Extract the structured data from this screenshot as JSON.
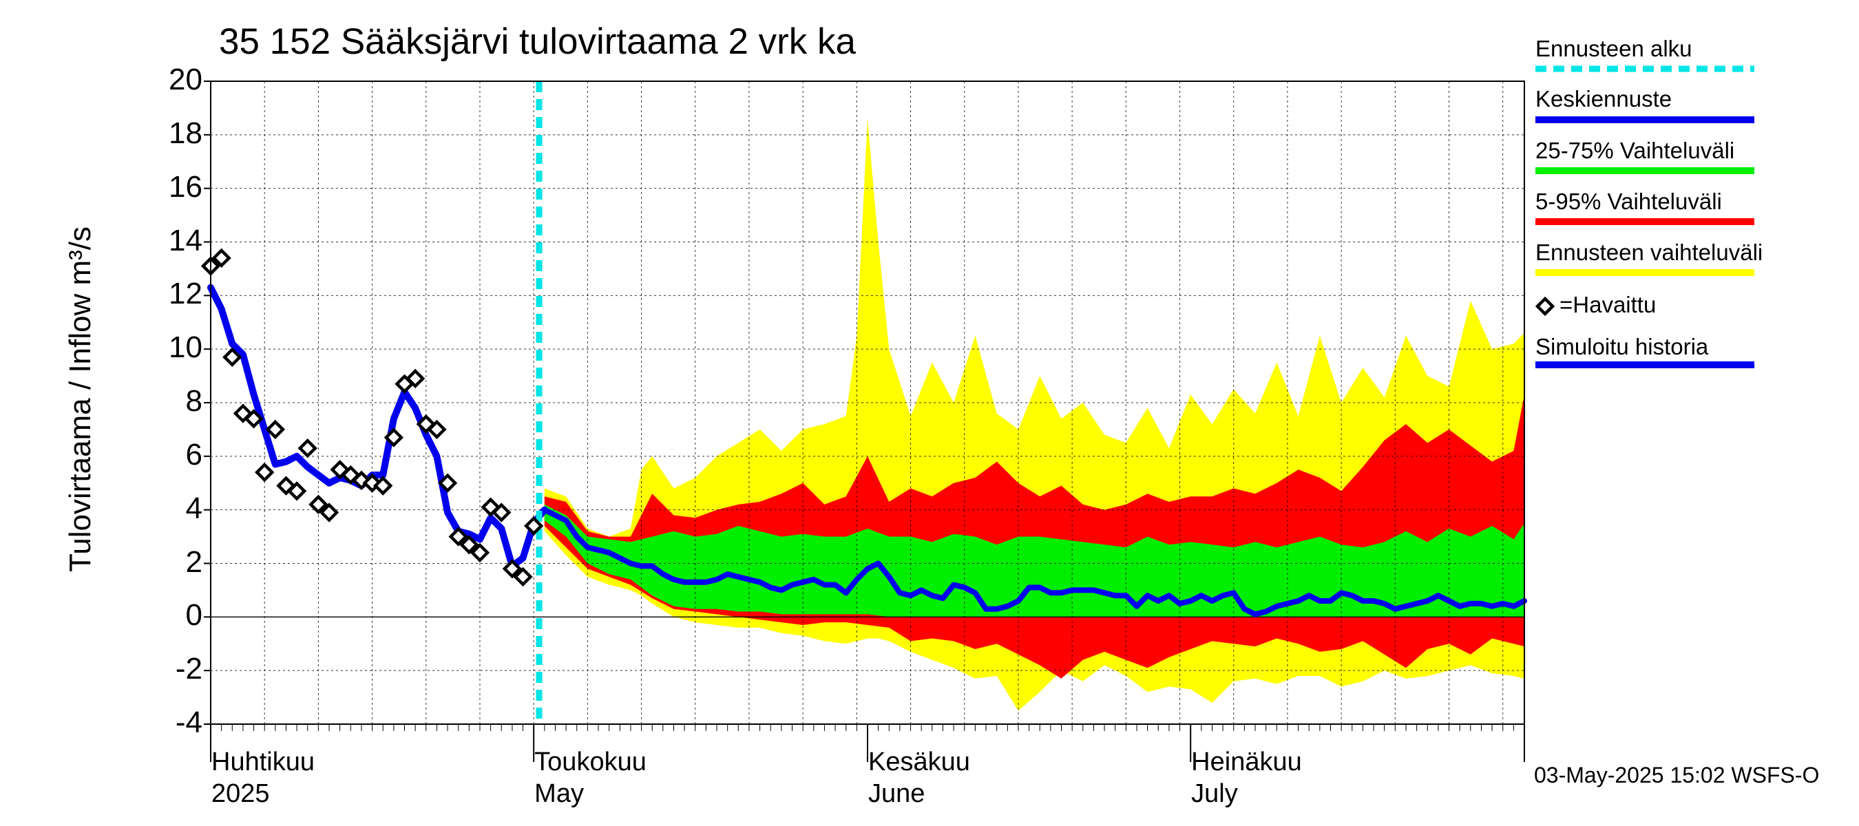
{
  "title": "35 152 Sääksjärvi tulovirtaama 2 vrk ka",
  "footer": "03-May-2025 15:02 WSFS-O",
  "colors": {
    "observed": "#000000",
    "forecast_start": "#00e5e5",
    "mean": "#0000ee",
    "band_25_75": "#00ee00",
    "band_5_95": "#ff0000",
    "band_full": "#ffff00",
    "grid": "#000000"
  },
  "legend": {
    "forecast_start": "Ennusteen alku",
    "mean": "Keskiennuste",
    "band_25_75": "25-75% Vaihteluväli",
    "band_5_95": "5-95% Vaihteluväli",
    "band_full": "Ennusteen vaihteluväli",
    "observed": "=Havaittu",
    "simulated": "Simuloitu historia"
  },
  "chart_data": {
    "type": "line",
    "title": "35 152 Sääksjärvi tulovirtaama 2 vrk ka",
    "ylabel": "Tulovirtaama / Inflow   m³/s",
    "ylim": [
      -4,
      20
    ],
    "yticks": [
      "-4",
      "-2",
      "0",
      "2",
      "4",
      "6",
      "8",
      "10",
      "12",
      "14",
      "16",
      "18",
      "20"
    ],
    "x_unit": "day index from 2025-04-01",
    "xlim": [
      0,
      122
    ],
    "month_labels": [
      {
        "line1": "Huhtikuu",
        "line2": "2025",
        "day": 0
      },
      {
        "line1": "Toukokuu",
        "line2": "May",
        "day": 30
      },
      {
        "line1": "Kesäkuu",
        "line2": "June",
        "day": 61
      },
      {
        "line1": "Heinäkuu",
        "line2": "July",
        "day": 91
      }
    ],
    "forecast_start_day": 30.5,
    "observed": [
      [
        0,
        13.1
      ],
      [
        1,
        13.4
      ],
      [
        2,
        9.7
      ],
      [
        3,
        7.6
      ],
      [
        4,
        7.4
      ],
      [
        5,
        5.4
      ],
      [
        6,
        7.0
      ],
      [
        7,
        4.9
      ],
      [
        8,
        4.7
      ],
      [
        9,
        6.3
      ],
      [
        10,
        4.2
      ],
      [
        11,
        3.9
      ],
      [
        12,
        5.5
      ],
      [
        13,
        5.3
      ],
      [
        14,
        5.1
      ],
      [
        15,
        5.0
      ],
      [
        16,
        4.9
      ],
      [
        17,
        6.7
      ],
      [
        18,
        8.7
      ],
      [
        19,
        8.9
      ],
      [
        20,
        7.2
      ],
      [
        21,
        7.0
      ],
      [
        22,
        5.0
      ],
      [
        23,
        3.0
      ],
      [
        24,
        2.7
      ],
      [
        25,
        2.4
      ],
      [
        26,
        4.1
      ],
      [
        27,
        3.9
      ],
      [
        28,
        1.8
      ],
      [
        29,
        1.5
      ],
      [
        30,
        3.4
      ]
    ],
    "simulated": [
      [
        0,
        12.3
      ],
      [
        1,
        11.5
      ],
      [
        2,
        10.2
      ],
      [
        3,
        9.8
      ],
      [
        4,
        8.3
      ],
      [
        5,
        7.0
      ],
      [
        6,
        5.7
      ],
      [
        7,
        5.8
      ],
      [
        8,
        6.0
      ],
      [
        9,
        5.6
      ],
      [
        10,
        5.3
      ],
      [
        11,
        5.0
      ],
      [
        12,
        5.2
      ],
      [
        13,
        5.1
      ],
      [
        14,
        4.9
      ],
      [
        15,
        5.3
      ],
      [
        16,
        5.3
      ],
      [
        17,
        7.4
      ],
      [
        18,
        8.4
      ],
      [
        19,
        7.8
      ],
      [
        20,
        6.8
      ],
      [
        21,
        6.0
      ],
      [
        22,
        3.9
      ],
      [
        23,
        3.2
      ],
      [
        24,
        3.1
      ],
      [
        25,
        2.9
      ],
      [
        26,
        3.7
      ],
      [
        27,
        3.3
      ],
      [
        28,
        1.9
      ],
      [
        29,
        2.2
      ],
      [
        30,
        3.5
      ],
      [
        31,
        4.0
      ]
    ],
    "series": [
      {
        "name": "Keskiennuste",
        "values": [
          [
            31,
            4.0
          ],
          [
            32,
            3.8
          ],
          [
            33,
            3.6
          ],
          [
            34,
            3.0
          ],
          [
            35,
            2.6
          ],
          [
            36,
            2.5
          ],
          [
            37,
            2.4
          ],
          [
            38,
            2.2
          ],
          [
            39,
            2.0
          ],
          [
            40,
            1.9
          ],
          [
            41,
            1.9
          ],
          [
            42,
            1.6
          ],
          [
            43,
            1.4
          ],
          [
            44,
            1.3
          ],
          [
            45,
            1.3
          ],
          [
            46,
            1.3
          ],
          [
            47,
            1.4
          ],
          [
            48,
            1.6
          ],
          [
            49,
            1.5
          ],
          [
            50,
            1.4
          ],
          [
            51,
            1.3
          ],
          [
            52,
            1.1
          ],
          [
            53,
            1.0
          ],
          [
            54,
            1.2
          ],
          [
            55,
            1.3
          ],
          [
            56,
            1.4
          ],
          [
            57,
            1.2
          ],
          [
            58,
            1.2
          ],
          [
            59,
            0.9
          ],
          [
            60,
            1.4
          ],
          [
            61,
            1.8
          ],
          [
            62,
            2.0
          ],
          [
            63,
            1.5
          ],
          [
            64,
            0.9
          ],
          [
            65,
            0.8
          ],
          [
            66,
            1.0
          ],
          [
            67,
            0.8
          ],
          [
            68,
            0.7
          ],
          [
            69,
            1.2
          ],
          [
            70,
            1.1
          ],
          [
            71,
            0.9
          ],
          [
            72,
            0.3
          ],
          [
            73,
            0.3
          ],
          [
            74,
            0.4
          ],
          [
            75,
            0.6
          ],
          [
            76,
            1.1
          ],
          [
            77,
            1.1
          ],
          [
            78,
            0.9
          ],
          [
            79,
            0.9
          ],
          [
            80,
            1.0
          ],
          [
            81,
            1.0
          ],
          [
            82,
            1.0
          ],
          [
            83,
            0.9
          ],
          [
            84,
            0.8
          ],
          [
            85,
            0.8
          ],
          [
            86,
            0.4
          ],
          [
            87,
            0.8
          ],
          [
            88,
            0.6
          ],
          [
            89,
            0.8
          ],
          [
            90,
            0.5
          ],
          [
            91,
            0.6
          ],
          [
            92,
            0.8
          ],
          [
            93,
            0.6
          ],
          [
            94,
            0.8
          ],
          [
            95,
            0.9
          ],
          [
            96,
            0.3
          ],
          [
            97,
            0.1
          ],
          [
            98,
            0.2
          ],
          [
            99,
            0.4
          ],
          [
            100,
            0.5
          ],
          [
            101,
            0.6
          ],
          [
            102,
            0.8
          ],
          [
            103,
            0.6
          ],
          [
            104,
            0.6
          ],
          [
            105,
            0.9
          ],
          [
            106,
            0.8
          ],
          [
            107,
            0.6
          ],
          [
            108,
            0.6
          ],
          [
            109,
            0.5
          ],
          [
            110,
            0.3
          ],
          [
            111,
            0.4
          ],
          [
            112,
            0.5
          ],
          [
            113,
            0.6
          ],
          [
            114,
            0.8
          ],
          [
            115,
            0.6
          ],
          [
            116,
            0.4
          ],
          [
            117,
            0.5
          ],
          [
            118,
            0.5
          ],
          [
            119,
            0.4
          ],
          [
            120,
            0.5
          ],
          [
            121,
            0.4
          ],
          [
            122,
            0.6
          ]
        ]
      },
      {
        "name": "25-75% Vaihteluväli",
        "x": [
          31,
          33,
          35,
          37,
          39,
          41,
          43,
          45,
          47,
          49,
          51,
          53,
          55,
          57,
          59,
          61,
          63,
          65,
          67,
          69,
          71,
          73,
          75,
          77,
          79,
          81,
          83,
          85,
          87,
          89,
          91,
          93,
          95,
          97,
          99,
          101,
          103,
          105,
          107,
          109,
          111,
          113,
          115,
          117,
          119,
          121,
          122
        ],
        "upper": [
          4.2,
          3.8,
          3.0,
          2.9,
          2.8,
          3.0,
          3.2,
          3.0,
          3.1,
          3.4,
          3.2,
          3.0,
          3.1,
          3.0,
          3.0,
          3.3,
          3.0,
          3.0,
          2.8,
          3.1,
          3.0,
          2.7,
          3.0,
          3.0,
          2.9,
          2.8,
          2.7,
          2.6,
          3.0,
          2.7,
          2.8,
          2.7,
          2.6,
          2.8,
          2.6,
          2.8,
          3.0,
          2.7,
          2.6,
          2.8,
          3.2,
          2.8,
          3.3,
          3.0,
          3.4,
          2.9,
          3.5
        ],
        "lower": [
          3.6,
          3.0,
          2.0,
          1.6,
          1.4,
          0.8,
          0.4,
          0.3,
          0.3,
          0.2,
          0.2,
          0.1,
          0.1,
          0.1,
          0.1,
          0.1,
          0.0,
          0.0,
          0.0,
          0.0,
          0.0,
          0.0,
          0.0,
          0.0,
          0.0,
          0.0,
          0.0,
          0.0,
          0.0,
          0.0,
          0.0,
          0.0,
          0.0,
          0.0,
          0.0,
          0.0,
          0.0,
          0.0,
          0.0,
          0.0,
          0.0,
          0.0,
          0.0,
          0.0,
          0.0,
          0.0,
          0.0
        ]
      },
      {
        "name": "5-95% Vaihteluväli",
        "x": [
          31,
          33,
          35,
          37,
          39,
          41,
          43,
          45,
          47,
          49,
          51,
          53,
          55,
          57,
          59,
          61,
          63,
          65,
          67,
          69,
          71,
          73,
          75,
          77,
          79,
          81,
          83,
          85,
          87,
          89,
          91,
          93,
          95,
          97,
          99,
          101,
          103,
          105,
          107,
          109,
          111,
          113,
          115,
          117,
          119,
          121,
          122
        ],
        "upper": [
          4.5,
          4.3,
          3.2,
          3.0,
          3.0,
          4.6,
          3.8,
          3.7,
          4.0,
          4.2,
          4.3,
          4.6,
          5.0,
          4.2,
          4.5,
          6.0,
          4.3,
          4.8,
          4.5,
          5.0,
          5.2,
          5.8,
          5.0,
          4.5,
          4.9,
          4.2,
          4.0,
          4.2,
          4.6,
          4.3,
          4.5,
          4.5,
          4.8,
          4.6,
          5.0,
          5.5,
          5.2,
          4.7,
          5.6,
          6.6,
          7.2,
          6.5,
          7.0,
          6.4,
          5.8,
          6.2,
          8.3
        ],
        "lower": [
          3.4,
          2.6,
          1.8,
          1.5,
          1.2,
          0.7,
          0.3,
          0.2,
          0.1,
          0.0,
          -0.1,
          -0.2,
          -0.3,
          -0.2,
          -0.2,
          -0.3,
          -0.4,
          -0.9,
          -0.8,
          -0.9,
          -1.2,
          -1.0,
          -1.4,
          -1.8,
          -2.3,
          -1.6,
          -1.3,
          -1.6,
          -1.9,
          -1.5,
          -1.2,
          -0.9,
          -1.0,
          -1.1,
          -0.8,
          -1.0,
          -1.3,
          -1.2,
          -0.9,
          -1.4,
          -1.9,
          -1.2,
          -1.0,
          -1.4,
          -0.8,
          -1.0,
          -1.1
        ]
      },
      {
        "name": "Ennusteen vaihteluväli",
        "x": [
          31,
          33,
          35,
          37,
          39,
          40,
          41,
          43,
          45,
          47,
          49,
          51,
          53,
          55,
          57,
          59,
          60,
          61,
          62,
          63,
          65,
          67,
          69,
          71,
          73,
          75,
          77,
          79,
          81,
          83,
          85,
          87,
          89,
          91,
          93,
          95,
          97,
          99,
          101,
          103,
          105,
          107,
          109,
          111,
          113,
          115,
          117,
          119,
          121,
          122
        ],
        "upper": [
          4.8,
          4.5,
          3.3,
          3.0,
          3.3,
          5.5,
          6.0,
          4.8,
          5.2,
          6.0,
          6.5,
          7.0,
          6.2,
          7.0,
          7.2,
          7.5,
          10.5,
          18.6,
          14.0,
          10.0,
          7.5,
          9.5,
          8.0,
          10.5,
          7.6,
          7.0,
          9.0,
          7.4,
          8.0,
          6.8,
          6.5,
          7.8,
          6.3,
          8.3,
          7.2,
          8.5,
          7.6,
          9.5,
          7.5,
          10.5,
          8.0,
          9.3,
          8.2,
          10.5,
          9.0,
          8.6,
          11.8,
          10.0,
          10.2,
          10.6
        ],
        "lower": [
          3.2,
          2.3,
          1.5,
          1.2,
          1.0,
          0.8,
          0.5,
          0.0,
          -0.2,
          -0.3,
          -0.4,
          -0.4,
          -0.6,
          -0.7,
          -0.9,
          -1.0,
          -0.9,
          -0.8,
          -0.8,
          -0.9,
          -1.3,
          -1.6,
          -1.9,
          -2.3,
          -2.2,
          -3.5,
          -2.8,
          -2.0,
          -2.4,
          -1.8,
          -2.2,
          -2.8,
          -2.6,
          -2.7,
          -3.2,
          -2.4,
          -2.3,
          -2.5,
          -2.2,
          -2.2,
          -2.6,
          -2.4,
          -2.0,
          -2.3,
          -2.2,
          -2.0,
          -1.8,
          -2.1,
          -2.2,
          -2.3
        ]
      }
    ]
  }
}
